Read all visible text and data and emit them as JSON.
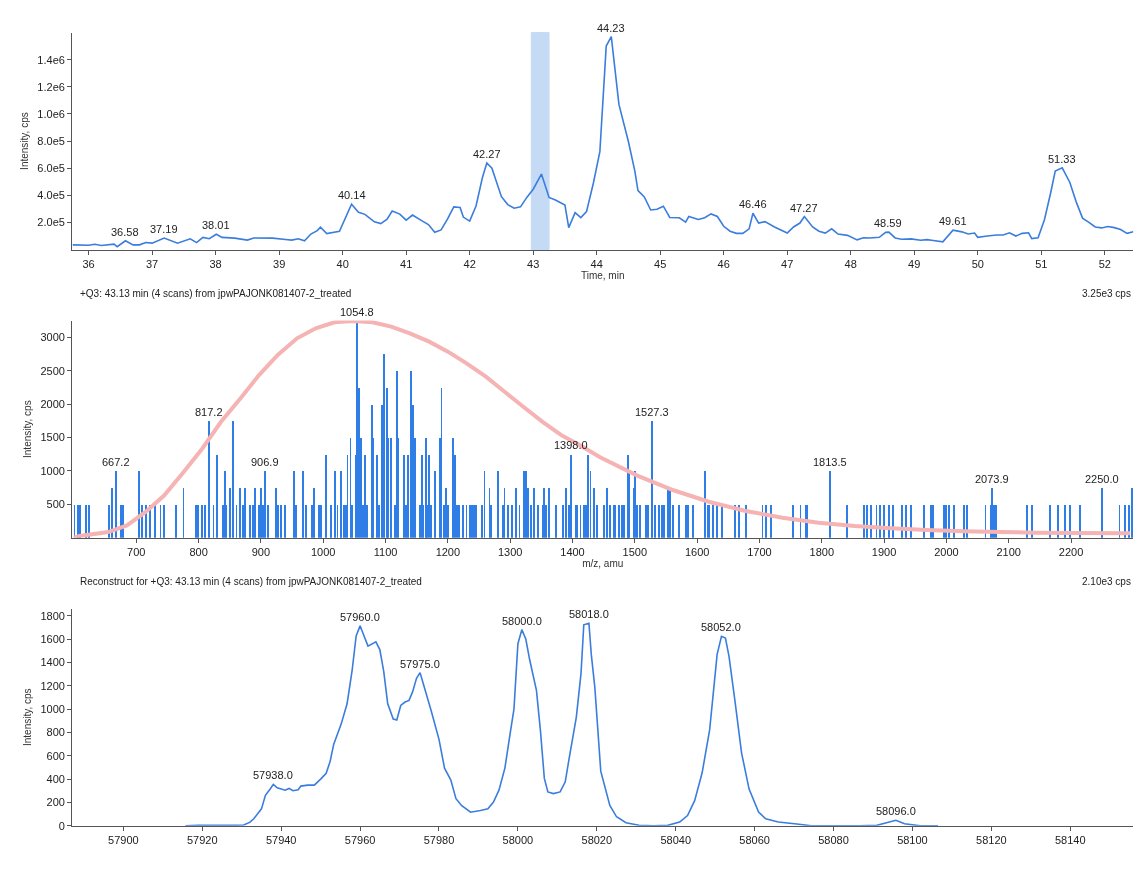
{
  "chart_data": [
    {
      "type": "line",
      "xlabel": "Time, min",
      "ylabel": "Intensity, cps",
      "x": [
        35.75,
        36.0,
        36.1,
        36.2,
        36.4,
        36.45,
        36.58,
        36.7,
        36.8,
        36.9,
        37.0,
        37.19,
        37.4,
        37.6,
        37.7,
        37.8,
        37.9,
        38.01,
        38.1,
        38.3,
        38.5,
        38.6,
        38.9,
        39.1,
        39.2,
        39.3,
        39.4,
        39.5,
        39.6,
        39.65,
        39.75,
        39.95,
        40.14,
        40.25,
        40.35,
        40.5,
        40.6,
        40.7,
        40.78,
        40.9,
        41.0,
        41.1,
        41.25,
        41.35,
        41.45,
        41.55,
        41.65,
        41.75,
        41.85,
        41.9,
        42.0,
        42.1,
        42.2,
        42.27,
        42.35,
        42.5,
        42.6,
        42.7,
        42.8,
        42.9,
        43.0,
        43.13,
        43.25,
        43.35,
        43.5,
        43.56,
        43.66,
        43.75,
        43.84,
        43.95,
        44.05,
        44.15,
        44.23,
        44.35,
        44.5,
        44.6,
        44.65,
        44.75,
        44.85,
        44.95,
        45.05,
        45.15,
        45.3,
        45.4,
        45.45,
        45.6,
        45.7,
        45.8,
        45.9,
        46.0,
        46.1,
        46.2,
        46.3,
        46.4,
        46.46,
        46.55,
        46.65,
        46.8,
        47.0,
        47.1,
        47.2,
        47.27,
        47.4,
        47.5,
        47.6,
        47.7,
        47.8,
        47.95,
        48.1,
        48.2,
        48.3,
        48.45,
        48.55,
        48.6,
        48.7,
        48.8,
        48.95,
        49.1,
        49.2,
        49.3,
        49.45,
        49.61,
        49.75,
        49.85,
        49.95,
        50.0,
        50.15,
        50.3,
        50.4,
        50.5,
        50.6,
        50.7,
        50.8,
        50.85,
        50.95,
        51.05,
        51.15,
        51.22,
        51.33,
        51.45,
        51.55,
        51.65,
        51.75,
        51.85,
        51.95,
        52.05,
        52.15,
        52.25,
        52.35,
        52.45
      ],
      "series": [
        {
          "color": "#3b7ddd",
          "values": [
            35000,
            32000,
            40000,
            30000,
            40000,
            22000,
            65000,
            35000,
            35000,
            52000,
            48000,
            85000,
            47000,
            80000,
            52000,
            90000,
            80000,
            113000,
            90000,
            85000,
            70000,
            86000,
            85000,
            75000,
            70000,
            80000,
            65000,
            115000,
            140000,
            165000,
            118000,
            135000,
            335000,
            275000,
            260000,
            205000,
            192000,
            225000,
            285000,
            262000,
            217000,
            255000,
            212000,
            185000,
            128000,
            145000,
            225000,
            315000,
            310000,
            240000,
            210000,
            322000,
            530000,
            638000,
            600000,
            390000,
            332000,
            305000,
            315000,
            385000,
            445000,
            557000,
            385000,
            365000,
            328000,
            162000,
            273000,
            236000,
            280000,
            495000,
            722000,
            1500000,
            1570000,
            1070000,
            795000,
            580000,
            435000,
            388000,
            292000,
            297000,
            320000,
            237000,
            235000,
            203000,
            244000,
            222000,
            235000,
            263000,
            244000,
            172000,
            136000,
            120000,
            120000,
            153000,
            268000,
            196000,
            206000,
            167000,
            122000,
            167000,
            196000,
            244000,
            167000,
            136000,
            122000,
            153000,
            115000,
            105000,
            72000,
            88000,
            86000,
            91000,
            127000,
            129000,
            86000,
            77000,
            79000,
            69000,
            74000,
            67000,
            57000,
            143000,
            131000,
            115000,
            122000,
            91000,
            100000,
            108000,
            108000,
            124000,
            100000,
            120000,
            124000,
            81000,
            88000,
            220000,
            423000,
            579000,
            603000,
            495000,
            352000,
            232000,
            201000,
            167000,
            160000,
            170000,
            162000,
            148000,
            120000,
            131000
          ]
        }
      ],
      "xlim": [
        35.74,
        52.45
      ],
      "ylim": [
        0,
        1600000
      ],
      "xticks": [
        36,
        37,
        38,
        39,
        40,
        41,
        42,
        43,
        44,
        45,
        46,
        47,
        48,
        49,
        50,
        51,
        52
      ],
      "yticks": [
        {
          "value": 200000,
          "label": "2.0e5"
        },
        {
          "value": 400000,
          "label": "4.0e5"
        },
        {
          "value": 600000,
          "label": "6.0e5"
        },
        {
          "value": 800000,
          "label": "8.0e5"
        },
        {
          "value": 1000000,
          "label": "1.0e6"
        },
        {
          "value": 1200000,
          "label": "1.2e6"
        },
        {
          "value": 1400000,
          "label": "1.4e6"
        }
      ],
      "bands": [
        {
          "axis": "x",
          "from": 42.97,
          "to": 43.25,
          "color": "#9ec3f0"
        }
      ],
      "annotations": [
        {
          "text": "36.58",
          "x": 36.58,
          "y": 65000
        },
        {
          "text": "37.19",
          "x": 37.19,
          "y": 85000
        },
        {
          "text": "38.01",
          "x": 38.01,
          "y": 113000
        },
        {
          "text": "40.14",
          "x": 40.14,
          "y": 335000
        },
        {
          "text": "42.27",
          "x": 42.27,
          "y": 638000
        },
        {
          "text": "44.23",
          "x": 44.23,
          "y": 1570000
        },
        {
          "text": "46.46",
          "x": 46.46,
          "y": 268000
        },
        {
          "text": "47.27",
          "x": 47.27,
          "y": 244000
        },
        {
          "text": "48.59",
          "x": 48.59,
          "y": 129000
        },
        {
          "text": "49.61",
          "x": 49.61,
          "y": 143000
        },
        {
          "text": "51.33",
          "x": 51.33,
          "y": 603000
        }
      ],
      "grid": false
    },
    {
      "type": "bar",
      "title": "+Q3: 43.13 min (4 scans) from jpwPAJONK081407-2_treated",
      "xlabel": "m/z, amu",
      "ylabel": "Intensity, cps",
      "series": [
        {
          "type": "bar",
          "color": "#2f7de6",
          "x": [
            601,
            606,
            610,
            619,
            624,
            656,
            661,
            667.2,
            675,
            679,
            705,
            710,
            716,
            722,
            730,
            739,
            745,
            764,
            776,
            796,
            799,
            806,
            811,
            817.2,
            824,
            830,
            839,
            842,
            845,
            850,
            855,
            861,
            867,
            872,
            874,
            882,
            888,
            891,
            897,
            900,
            904,
            906.9,
            912,
            924,
            927,
            933,
            939,
            953,
            956,
            968,
            973,
            982,
            985,
            993,
            997,
            1004,
            1012,
            1019,
            1023,
            1029,
            1033,
            1036,
            1039,
            1044,
            1047,
            1052,
            1054.8,
            1057,
            1061,
            1064,
            1067,
            1070,
            1078,
            1080,
            1086,
            1090,
            1094,
            1098,
            1102,
            1104,
            1109,
            1115,
            1119,
            1121,
            1130,
            1133,
            1136,
            1141,
            1144,
            1148,
            1155,
            1158,
            1161,
            1165,
            1167,
            1170,
            1173,
            1180,
            1187,
            1190,
            1194,
            1197,
            1200,
            1208,
            1212,
            1215,
            1218,
            1224,
            1230,
            1236,
            1239,
            1242,
            1245,
            1255,
            1259,
            1267,
            1270,
            1280,
            1288,
            1291,
            1297,
            1303,
            1309,
            1315,
            1323,
            1326,
            1329,
            1333,
            1338,
            1345,
            1352,
            1355,
            1358,
            1362,
            1373,
            1385,
            1390,
            1394,
            1398.0,
            1405,
            1408,
            1413,
            1419,
            1422,
            1425,
            1429,
            1435,
            1440,
            1451,
            1456,
            1460,
            1466,
            1469,
            1475,
            1480,
            1483,
            1489,
            1491,
            1498,
            1500,
            1504,
            1509,
            1518,
            1521,
            1527.3,
            1533,
            1539,
            1544,
            1547,
            1553,
            1557,
            1562,
            1571,
            1582,
            1585,
            1594,
            1613,
            1617,
            1620,
            1626,
            1632,
            1640,
            1661,
            1667,
            1678,
            1705,
            1710,
            1719,
            1754,
            1766,
            1774,
            1777,
            1813.5,
            1841,
            1868,
            1873,
            1879,
            1888,
            1894,
            1900,
            1908,
            1914,
            1929,
            1935,
            1943,
            1964,
            1975,
            1978,
            1996,
            1999,
            2004,
            2013,
            2028,
            2033,
            2063,
            2071,
            2073.9,
            2077,
            2080,
            2130,
            2138,
            2167,
            2179,
            2190,
            2199,
            2214,
            2250.0,
            2278,
            2287,
            2293,
            2298
          ],
          "values": [
            500,
            500,
            500,
            500,
            500,
            500,
            750,
            1000,
            500,
            500,
            1000,
            500,
            500,
            500,
            500,
            500,
            500,
            500,
            750,
            500,
            500,
            500,
            500,
            1750,
            500,
            1250,
            500,
            1000,
            500,
            750,
            1750,
            500,
            750,
            500,
            750,
            500,
            500,
            750,
            500,
            750,
            500,
            1000,
            500,
            750,
            500,
            500,
            500,
            1000,
            500,
            1000,
            500,
            500,
            750,
            500,
            500,
            1250,
            500,
            1000,
            500,
            1000,
            500,
            500,
            1250,
            1500,
            500,
            1250,
            3250,
            2250,
            1500,
            500,
            1250,
            500,
            2000,
            1500,
            1250,
            500,
            2000,
            2750,
            2250,
            1500,
            1500,
            500,
            2500,
            1500,
            1250,
            500,
            1250,
            2500,
            2000,
            1500,
            500,
            1250,
            500,
            1500,
            500,
            1250,
            500,
            1000,
            1500,
            2250,
            500,
            750,
            500,
            1500,
            1250,
            500,
            500,
            500,
            500,
            500,
            500,
            500,
            500,
            500,
            1000,
            750,
            500,
            1000,
            500,
            750,
            500,
            500,
            750,
            500,
            1000,
            1000,
            750,
            500,
            750,
            500,
            500,
            750,
            500,
            750,
            500,
            500,
            750,
            500,
            1250,
            500,
            500,
            500,
            500,
            500,
            1250,
            1000,
            750,
            500,
            500,
            750,
            500,
            500,
            500,
            500,
            500,
            500,
            1250,
            1000,
            750,
            1000,
            500,
            500,
            500,
            500,
            1750,
            500,
            500,
            500,
            500,
            750,
            750,
            500,
            500,
            500,
            500,
            500,
            1000,
            500,
            500,
            500,
            500,
            500,
            500,
            500,
            500,
            500,
            500,
            500,
            500,
            500,
            500,
            500,
            1000,
            500,
            500,
            500,
            500,
            500,
            500,
            500,
            500,
            500,
            500,
            500,
            500,
            500,
            500,
            500,
            500,
            500,
            500,
            500,
            500,
            500,
            500,
            500,
            750,
            500,
            500,
            500,
            500,
            500,
            500,
            500,
            500,
            500,
            750,
            500,
            500,
            500,
            750
          ]
        },
        {
          "type": "line",
          "color": "#f5b3b3",
          "x": [
            600,
            609,
            655,
            685,
            715,
            745,
            776,
            806,
            836,
            867,
            897,
            927,
            958,
            988,
            1018,
            1048,
            1079,
            1109,
            1139,
            1170,
            1200,
            1230,
            1261,
            1291,
            1321,
            1352,
            1382,
            1412,
            1445,
            1504,
            1562,
            1620,
            1678,
            1737,
            1795,
            1853,
            1911,
            1969,
            2028,
            2086,
            2144,
            2202,
            2295
          ],
          "values": [
            0,
            25,
            85,
            185,
            385,
            635,
            985,
            1335,
            1735,
            2085,
            2435,
            2735,
            2985,
            3135,
            3225,
            3245,
            3225,
            3160,
            3060,
            2935,
            2785,
            2610,
            2410,
            2185,
            1960,
            1735,
            1535,
            1385,
            1200,
            930,
            710,
            535,
            400,
            300,
            225,
            175,
            140,
            115,
            95,
            85,
            75,
            70,
            65
          ]
        }
      ],
      "xlim": [
        597,
        2300
      ],
      "ylim": [
        0,
        3250
      ],
      "xticks": [
        700,
        800,
        900,
        1000,
        1100,
        1200,
        1300,
        1400,
        1500,
        1600,
        1700,
        1800,
        1900,
        2000,
        2100,
        2200
      ],
      "yticks": [
        500,
        1000,
        1500,
        2000,
        2500,
        3000
      ],
      "annotations": [
        "3.25e3 cps",
        {
          "text": "667.2",
          "x": 667.2,
          "y": 1000
        },
        {
          "text": "817.2",
          "x": 817.2,
          "y": 1750
        },
        {
          "text": "906.9",
          "x": 906.9,
          "y": 1000
        },
        {
          "text": "1054.8",
          "x": 1054.8,
          "y": 3250
        },
        {
          "text": "1398.0",
          "x": 1398.0,
          "y": 1250
        },
        {
          "text": "1527.3",
          "x": 1527.3,
          "y": 1750
        },
        {
          "text": "1813.5",
          "x": 1813.5,
          "y": 1000
        },
        {
          "text": "2073.9",
          "x": 2073.9,
          "y": 750
        },
        {
          "text": "2250.0",
          "x": 2250.0,
          "y": 750
        }
      ],
      "grid": false
    },
    {
      "type": "line",
      "title": "Reconstruct for +Q3: 43.13 min (4 scans) from jpwPAJONK081407-2_treated",
      "ylabel": "Intensity, cps",
      "x": [
        57915.7,
        57919,
        57924,
        57928.6,
        57930.5,
        57932,
        57933,
        57935,
        57936,
        57937.3,
        57938,
        57939,
        57941,
        57942,
        57943,
        57944.3,
        57945,
        57946.7,
        57948.4,
        57950,
        57951.4,
        57952.4,
        57953.3,
        57955.2,
        57956.7,
        57958,
        57959,
        57960,
        57962,
        57964,
        57965,
        57966,
        57967,
        57968.4,
        57969.3,
        57970.3,
        57971.4,
        57972.4,
        57973.3,
        57974.3,
        57975.2,
        57976,
        57978,
        57980,
        57981.4,
        57983,
        57984.3,
        57985.7,
        57988,
        57990.5,
        57992.4,
        57993.8,
        57995.2,
        57996.7,
        57998,
        57999,
        58000,
        58001,
        58002,
        58003,
        58004.7,
        58005.7,
        58006.7,
        58007.6,
        58009,
        58010.7,
        58012,
        58013,
        58014.8,
        58016,
        58016.7,
        58018,
        58018.6,
        58019.5,
        58021,
        58023.3,
        58025,
        58027.4,
        58030.7,
        58034.4,
        58038,
        58041,
        58043,
        58044.8,
        58046.7,
        58048.6,
        58050.5,
        58051.6,
        58052.6,
        58053.5,
        58055,
        58056.7,
        58058.6,
        58061,
        58062.8,
        58066,
        58070.7,
        58074.4,
        58086.5,
        58091,
        58095.8,
        58098,
        58102,
        58106.5
      ],
      "series": [
        {
          "color": "#3b7ddd",
          "values": [
            0,
            5,
            5,
            5,
            6,
            29,
            58,
            145,
            261,
            320,
            355,
            325,
            305,
            320,
            300,
            308,
            340,
            348,
            348,
            400,
            450,
            551,
            697,
            871,
            1045,
            1335,
            1626,
            1713,
            1539,
            1576,
            1510,
            1321,
            1045,
            914,
            906,
            1031,
            1060,
            1074,
            1147,
            1263,
            1312,
            1219,
            987,
            740,
            494,
            392,
            232,
            174,
            116,
            131,
            145,
            203,
            305,
            494,
            784,
            1000,
            1560,
            1680,
            1600,
            1420,
            1160,
            820,
            406,
            290,
            276,
            290,
            377,
            580,
            929,
            1306,
            1722,
            1735,
            1468,
            1186,
            468,
            175,
            77,
            26,
            5,
            0,
            4,
            32,
            88,
            215,
            454,
            821,
            1468,
            1623,
            1609,
            1454,
            1074,
            623,
            314,
            117,
            60,
            32,
            15,
            0,
            0,
            4,
            47,
            18,
            0,
            0
          ]
        }
      ],
      "xlim": [
        57887,
        58156
      ],
      "ylim": [
        0,
        1860
      ],
      "xticks": [
        57900,
        57920,
        57940,
        57960,
        57980,
        58000,
        58020,
        58040,
        58060,
        58080,
        58100,
        58120,
        58140
      ],
      "yticks": [
        0,
        200,
        400,
        600,
        800,
        1000,
        1200,
        1400,
        1600,
        1800
      ],
      "annotations": [
        "2.10e3 cps",
        {
          "text": "57938.0",
          "x": 57938,
          "y": 355
        },
        {
          "text": "57960.0",
          "x": 57960,
          "y": 1713
        },
        {
          "text": "57975.0",
          "x": 57975.2,
          "y": 1312
        },
        {
          "text": "58000.0",
          "x": 58001,
          "y": 1680
        },
        {
          "text": "58018.0",
          "x": 58018,
          "y": 1735
        },
        {
          "text": "58052.0",
          "x": 58051.6,
          "y": 1623
        },
        {
          "text": "58096.0",
          "x": 58095.8,
          "y": 47
        }
      ],
      "grid": false
    }
  ]
}
